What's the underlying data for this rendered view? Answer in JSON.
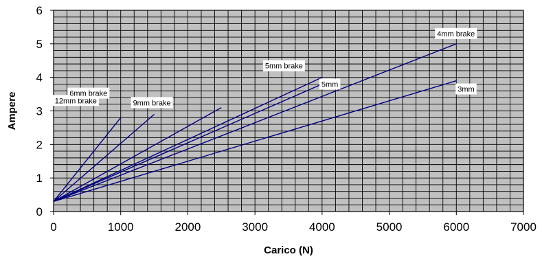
{
  "chart_data": {
    "type": "line",
    "title": "",
    "xlabel": "Carico (N)",
    "ylabel": "Ampere",
    "xlim": [
      0,
      7000
    ],
    "ylim": [
      0,
      6
    ],
    "x_ticks": [
      0,
      1000,
      2000,
      3000,
      4000,
      5000,
      6000,
      7000
    ],
    "y_ticks": [
      0,
      1,
      2,
      3,
      4,
      5,
      6
    ],
    "minor_x_step": 200,
    "minor_y_step": 0.2,
    "grid": true,
    "plot_background": "#c0c0c0",
    "grid_color": "#000000",
    "line_color": "#000080",
    "series": [
      {
        "name": "12mm brake",
        "x": [
          0,
          1000
        ],
        "y": [
          0.3,
          2.8
        ]
      },
      {
        "name": "9mm brake",
        "x": [
          0,
          1500
        ],
        "y": [
          0.3,
          2.9
        ]
      },
      {
        "name": "6mm brake",
        "x": [
          0,
          2500
        ],
        "y": [
          0.3,
          3.1
        ]
      },
      {
        "name": "5mm brake",
        "x": [
          0,
          4000
        ],
        "y": [
          0.3,
          4.0
        ]
      },
      {
        "name": "5mm",
        "x": [
          0,
          4000
        ],
        "y": [
          0.3,
          3.8
        ]
      },
      {
        "name": "4mm brake",
        "x": [
          0,
          6000
        ],
        "y": [
          0.3,
          5.0
        ]
      },
      {
        "name": "3mm",
        "x": [
          0,
          6000
        ],
        "y": [
          0.3,
          3.9
        ]
      }
    ]
  }
}
